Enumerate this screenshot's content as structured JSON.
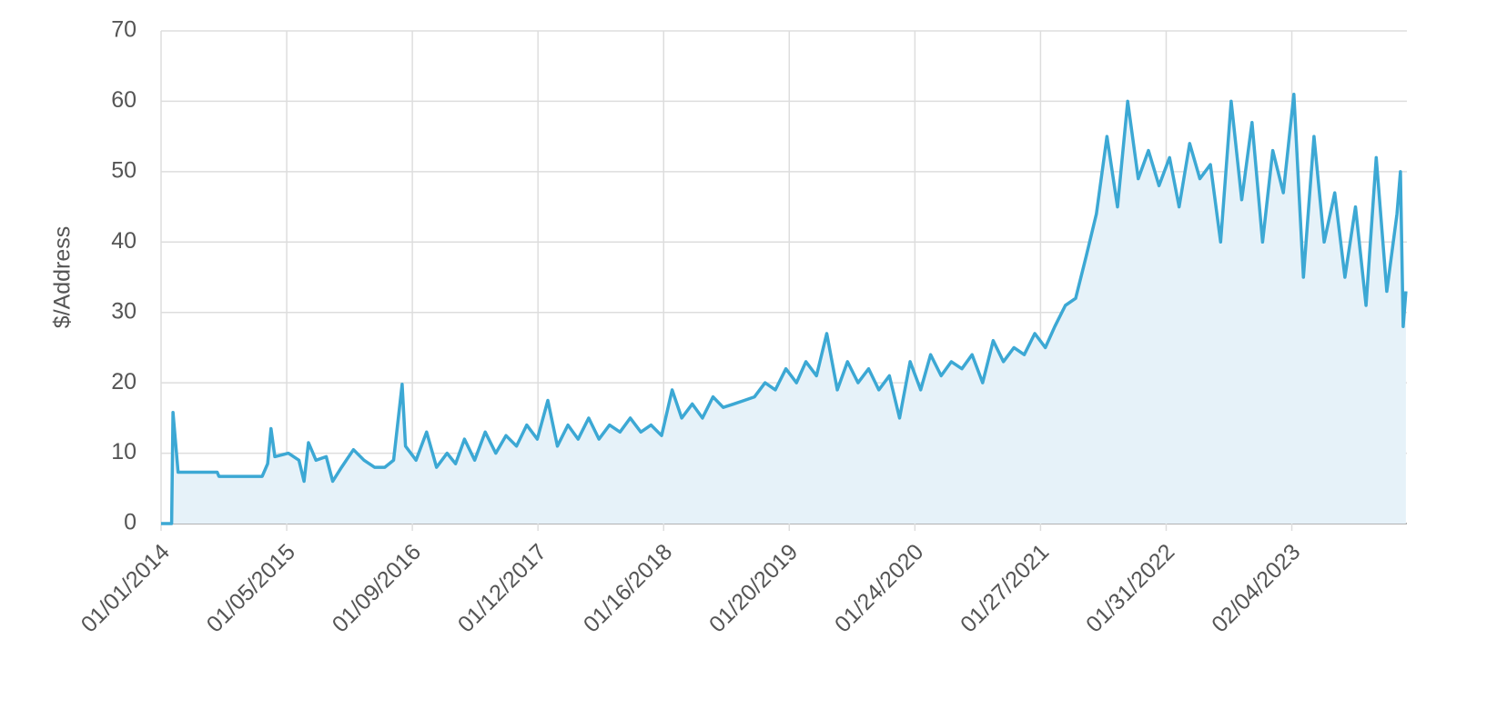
{
  "chart_data": {
    "type": "area",
    "y_label": "$/Address",
    "x": [
      "01/01/2014",
      "02/01/2014",
      "02/05/2014",
      "02/20/2014",
      "06/15/2014",
      "06/20/2014",
      "10/25/2014",
      "11/10/2014",
      "11/20/2014",
      "12/01/2014",
      "01/10/2015",
      "02/10/2015",
      "02/25/2015",
      "03/10/2015",
      "04/01/2015",
      "05/01/2015",
      "05/20/2015",
      "06/15/2015",
      "07/20/2015",
      "08/20/2015",
      "09/20/2015",
      "10/20/2015",
      "11/15/2015",
      "12/10/2015",
      "12/20/2015",
      "01/20/2016",
      "02/20/2016",
      "03/20/2016",
      "04/20/2016",
      "05/15/2016",
      "06/10/2016",
      "07/10/2016",
      "08/10/2016",
      "09/10/2016",
      "10/10/2016",
      "11/10/2016",
      "12/10/2016",
      "01/10/2017",
      "02/10/2017",
      "03/10/2017",
      "04/10/2017",
      "05/10/2017",
      "06/10/2017",
      "07/10/2017",
      "08/10/2017",
      "09/10/2017",
      "10/10/2017",
      "11/10/2017",
      "12/10/2017",
      "01/10/2018",
      "02/10/2018",
      "03/10/2018",
      "04/10/2018",
      "05/10/2018",
      "06/10/2018",
      "07/10/2018",
      "08/10/2018",
      "09/10/2018",
      "10/10/2018",
      "11/10/2018",
      "12/10/2018",
      "01/10/2019",
      "02/10/2019",
      "03/10/2019",
      "04/10/2019",
      "05/10/2019",
      "06/10/2019",
      "07/10/2019",
      "08/10/2019",
      "09/10/2019",
      "10/10/2019",
      "11/10/2019",
      "12/10/2019",
      "01/10/2020",
      "02/10/2020",
      "03/10/2020",
      "04/10/2020",
      "05/10/2020",
      "06/10/2020",
      "07/10/2020",
      "08/10/2020",
      "09/10/2020",
      "10/10/2020",
      "11/10/2020",
      "12/10/2020",
      "01/10/2021",
      "02/10/2021",
      "03/10/2021",
      "04/10/2021",
      "05/10/2021",
      "06/10/2021",
      "07/10/2021",
      "08/10/2021",
      "09/10/2021",
      "10/10/2021",
      "11/10/2021",
      "12/10/2021",
      "01/10/2022",
      "02/10/2022",
      "03/10/2022",
      "04/10/2022",
      "05/10/2022",
      "06/10/2022",
      "07/10/2022",
      "08/10/2022",
      "09/10/2022",
      "10/10/2022",
      "11/10/2022",
      "12/10/2022",
      "01/10/2023",
      "02/10/2023",
      "03/10/2023",
      "04/10/2023",
      "05/10/2023",
      "06/10/2023",
      "07/10/2023",
      "08/10/2023",
      "09/10/2023",
      "10/10/2023",
      "11/10/2023",
      "12/10/2023",
      "12/20/2023",
      "12/28/2023",
      "01/05/2024"
    ],
    "series": [
      {
        "name": "$/Address",
        "color": "#3ca8d4",
        "fill": "#e6f2f9",
        "values": [
          0,
          0,
          15.8,
          7.3,
          7.3,
          6.7,
          6.7,
          8.5,
          13.5,
          9.5,
          10,
          9,
          6,
          11.5,
          9,
          9.5,
          6,
          8,
          10.5,
          9,
          8,
          8,
          9,
          19.8,
          11,
          9,
          13,
          8,
          10,
          8.5,
          12,
          9,
          13,
          10,
          12.5,
          11,
          14,
          12,
          17.5,
          11,
          14,
          12,
          15,
          12,
          14,
          13,
          15,
          13,
          14,
          12.5,
          19,
          15,
          17,
          15,
          18,
          16.5,
          17,
          17.5,
          18,
          20,
          19,
          22,
          20,
          23,
          21,
          27,
          19,
          23,
          20,
          22,
          19,
          21,
          15,
          23,
          19,
          24,
          21,
          23,
          22,
          24,
          20,
          26,
          23,
          25,
          24,
          27,
          25,
          28,
          31,
          32,
          38,
          44,
          55,
          45,
          60,
          49,
          53,
          48,
          52,
          45,
          54,
          49,
          51,
          40,
          60,
          46,
          57,
          40,
          53,
          47,
          61,
          35,
          55,
          40,
          47,
          35,
          45,
          31,
          52,
          33,
          44,
          50,
          28,
          33
        ]
      }
    ],
    "xlim": [
      "01/01/2014",
      "01/08/2024"
    ],
    "xticks": [
      "01/01/2014",
      "01/05/2015",
      "01/09/2016",
      "01/12/2017",
      "01/16/2018",
      "01/20/2019",
      "01/24/2020",
      "01/27/2021",
      "01/31/2022",
      "02/04/2023"
    ],
    "ylim": [
      0,
      70
    ],
    "yticks": [
      0,
      10,
      20,
      30,
      40,
      50,
      60,
      70
    ],
    "grid": true
  }
}
